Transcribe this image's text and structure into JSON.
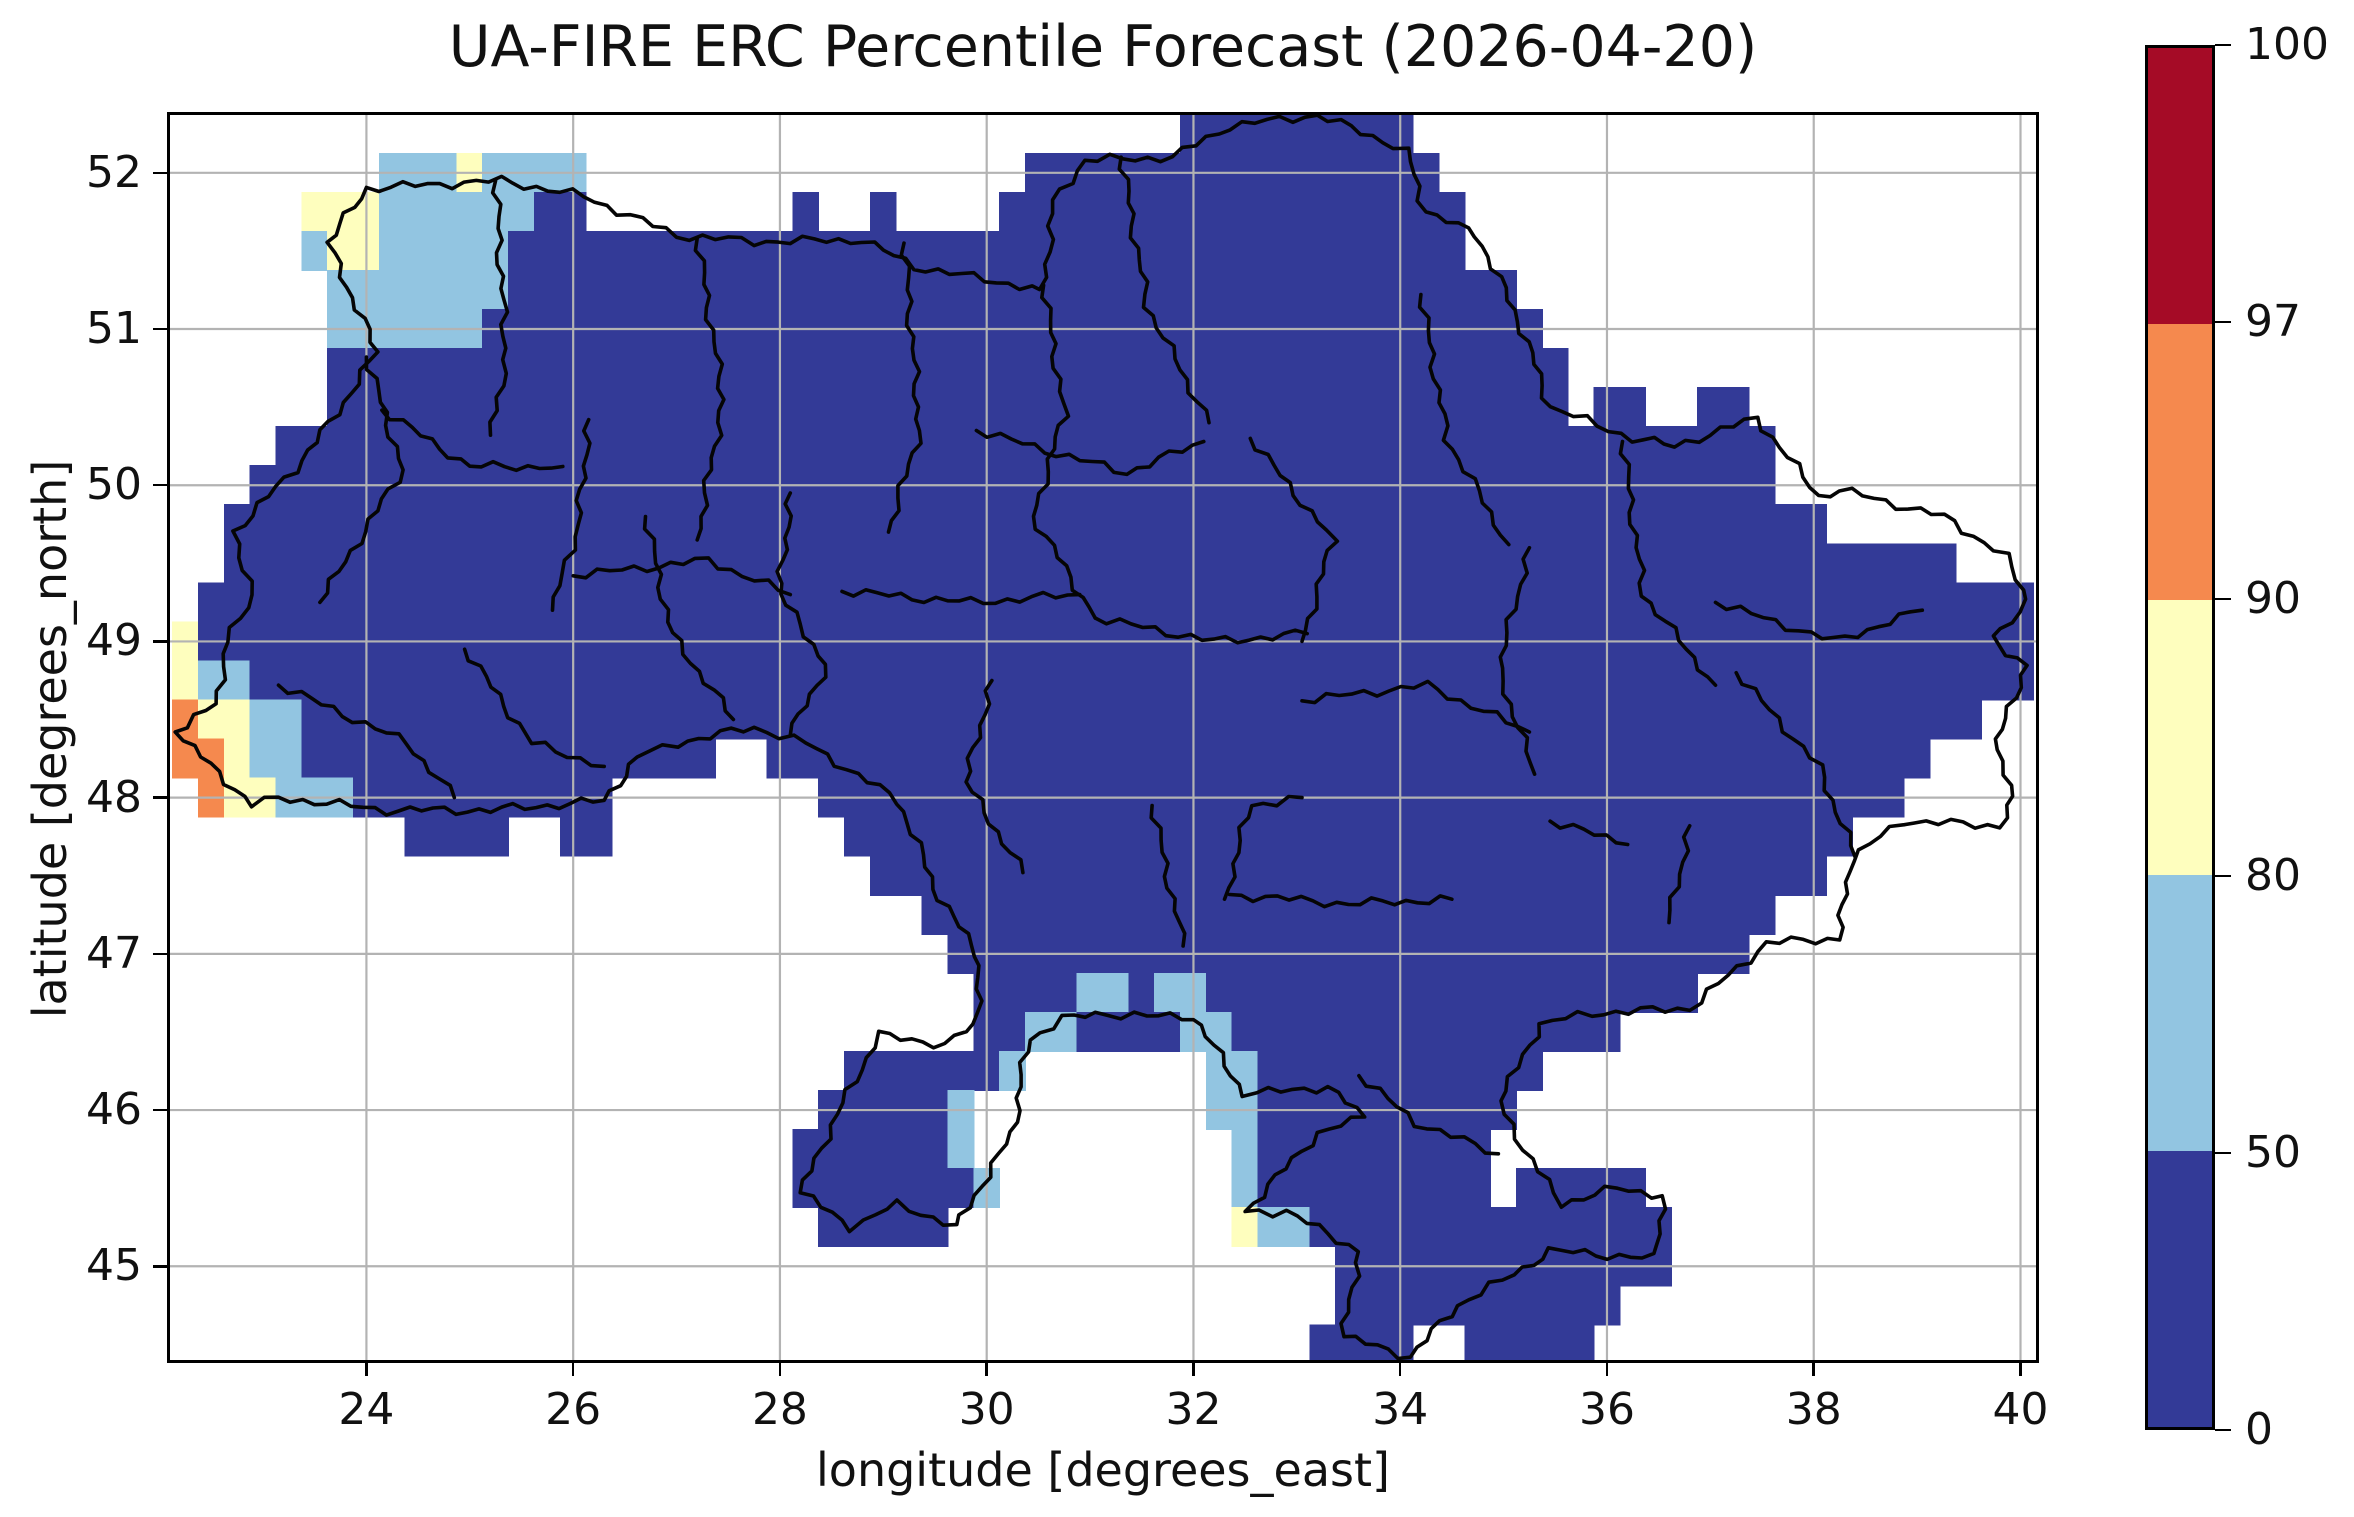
{
  "chart_data": {
    "type": "heatmap",
    "title": "UA-FIRE ERC Percentile Forecast (2026-04-20)",
    "xlabel": "longitude [degrees_east]",
    "ylabel": "latitude [degrees_north]",
    "xlim": [
      22.1,
      40.15
    ],
    "ylim": [
      44.4,
      52.37
    ],
    "xticks": [
      24,
      26,
      28,
      30,
      32,
      34,
      36,
      38,
      40
    ],
    "yticks": [
      45,
      46,
      47,
      48,
      49,
      50,
      51,
      52
    ],
    "grid": true,
    "grid_color": "#b3b3b3",
    "background": "#ffffff",
    "colorbar": {
      "levels": [
        0,
        50,
        80,
        90,
        97,
        100
      ],
      "colors": [
        "#333a97",
        "#92c5e1",
        "#fefebe",
        "#f5894e",
        "#a50b26"
      ],
      "spacing": "uniform"
    },
    "raster": {
      "comment": "0.25-degree cells; row 0 centered at lat 52.25 going south; col 0 centered at lon 22.25 going east; RLE per row; .=no data, b=0-50, c=50-80, y=80-90, o=90-97, r=97-100 percentile class",
      "lon0": 22.25,
      "lat0": 52.25,
      "dlon": 0.25,
      "dlat": 0.25,
      "cols": 72,
      "class_values": {
        "b": "0-50",
        "c": "50-80",
        "y": "80-90",
        "o": "90-97",
        "r": "97-100"
      },
      "class_colors": {
        "b": "#333a97",
        "c": "#92c5e1",
        "y": "#fefebe",
        "o": "#f5894e",
        "r": "#a50b26"
      },
      "rows": [
        "39.9b24.",
        "8.3c1y4c17.16b23.",
        "5.3y6c2b8.1b2.1b4.18b22.",
        "5.1c2y5c37b22.",
        "6.7c39b20.",
        "6.6c41b19.",
        "6.48b18.",
        "6.48b1.2b2.2b11.",
        "4.58b10.",
        "3.59b10.",
        "2.62b8.",
        "2.67b3.",
        "1.71b",
        "1y71b",
        "1y2c69b",
        "1o2y2c65b2.",
        "2o1y2c16b2.45b4.",
        "1.1o2y3c10b8.42b5.",
        "9.4b2.2b9.39b7.",
        "27.37b8.",
        "29.33b10.",
        "30.31b11.",
        "31.4b2c1b2c19b13.",
        "31.2b2c4b2c15b16.",
        "26.6b1c7.2c11b19.",
        "25.5b1c9.2c10b20.",
        "24.6b1c10.1c9b21.",
        "24.7b1c9.1c9b1.5b15.",
        "25.5b11.1y2c14b14.",
        "45.13b14.",
        "45.11b16.",
        "44.4b2.5b17."
      ]
    },
    "borders": {
      "national": [
        [
          22.15,
          48.42
        ],
        [
          22.55,
          48.6
        ],
        [
          22.65,
          49.0
        ],
        [
          22.9,
          49.3
        ],
        [
          22.72,
          49.7
        ],
        [
          23.3,
          50.1
        ],
        [
          23.65,
          50.4
        ],
        [
          24.1,
          50.85
        ],
        [
          23.63,
          51.55
        ],
        [
          24.0,
          51.9
        ],
        [
          25.3,
          51.95
        ],
        [
          26.1,
          51.85
        ],
        [
          27.0,
          51.6
        ],
        [
          27.75,
          51.56
        ],
        [
          28.8,
          51.57
        ],
        [
          29.3,
          51.4
        ],
        [
          30.55,
          51.25
        ],
        [
          30.65,
          51.82
        ],
        [
          30.95,
          52.08
        ],
        [
          31.8,
          52.1
        ],
        [
          32.35,
          52.3
        ],
        [
          33.2,
          52.37
        ],
        [
          34.05,
          52.15
        ],
        [
          34.25,
          51.75
        ],
        [
          34.75,
          51.6
        ],
        [
          35.15,
          51.05
        ],
        [
          35.45,
          50.5
        ],
        [
          36.25,
          50.3
        ],
        [
          36.65,
          50.25
        ],
        [
          37.45,
          50.43
        ],
        [
          38.05,
          49.93
        ],
        [
          38.25,
          49.97
        ],
        [
          39.25,
          49.8
        ],
        [
          39.85,
          49.55
        ],
        [
          40.08,
          49.25
        ],
        [
          39.72,
          49.02
        ],
        [
          40.05,
          48.85
        ],
        [
          39.75,
          48.3
        ],
        [
          39.95,
          48.0
        ],
        [
          39.8,
          47.82
        ],
        [
          38.85,
          47.85
        ],
        [
          38.35,
          47.6
        ],
        [
          38.25,
          47.1
        ],
        [
          37.55,
          47.07
        ],
        [
          36.8,
          46.65
        ],
        [
          35.85,
          46.62
        ],
        [
          35.35,
          46.55
        ],
        [
          35.2,
          46.35
        ],
        [
          34.95,
          46.05
        ],
        [
          35.2,
          45.75
        ],
        [
          35.55,
          45.4
        ],
        [
          36.1,
          45.5
        ],
        [
          36.55,
          45.45
        ],
        [
          36.45,
          45.05
        ],
        [
          35.45,
          45.1
        ],
        [
          35.1,
          44.95
        ],
        [
          34.55,
          44.75
        ],
        [
          34.1,
          44.42
        ],
        [
          33.45,
          44.55
        ],
        [
          33.6,
          45.1
        ],
        [
          32.9,
          45.35
        ],
        [
          32.5,
          45.35
        ],
        [
          33.2,
          45.85
        ],
        [
          33.65,
          45.95
        ],
        [
          33.3,
          46.15
        ],
        [
          32.5,
          46.1
        ],
        [
          32.0,
          46.6
        ],
        [
          31.55,
          46.6
        ],
        [
          31.05,
          46.62
        ],
        [
          30.75,
          46.58
        ],
        [
          30.4,
          46.45
        ],
        [
          30.25,
          45.85
        ],
        [
          29.7,
          45.25
        ],
        [
          29.15,
          45.4
        ],
        [
          28.7,
          45.25
        ],
        [
          28.2,
          45.47
        ],
        [
          28.5,
          45.9
        ],
        [
          28.95,
          46.48
        ],
        [
          29.6,
          46.42
        ],
        [
          29.9,
          46.55
        ],
        [
          29.92,
          47.0
        ],
        [
          29.55,
          47.35
        ],
        [
          29.15,
          47.98
        ],
        [
          28.25,
          48.35
        ],
        [
          27.75,
          48.45
        ],
        [
          27.0,
          48.35
        ],
        [
          26.62,
          48.26
        ],
        [
          26.3,
          47.98
        ],
        [
          25.2,
          47.92
        ],
        [
          24.2,
          47.92
        ],
        [
          23.15,
          48.0
        ],
        [
          22.9,
          47.95
        ],
        [
          22.15,
          48.42
        ]
      ],
      "internal": [
        [
          [
            24.0,
            50.82
          ],
          [
            24.35,
            50.1
          ],
          [
            23.55,
            49.25
          ]
        ],
        [
          [
            25.25,
            51.95
          ],
          [
            25.35,
            50.8
          ],
          [
            25.2,
            50.32
          ]
        ],
        [
          [
            24.15,
            50.48
          ],
          [
            25.0,
            50.12
          ],
          [
            25.9,
            50.12
          ]
        ],
        [
          [
            26.15,
            50.42
          ],
          [
            26.05,
            49.75
          ],
          [
            25.8,
            49.2
          ]
        ],
        [
          [
            27.2,
            51.58
          ],
          [
            27.45,
            50.55
          ],
          [
            27.2,
            49.65
          ]
        ],
        [
          [
            26.7,
            49.8
          ],
          [
            26.95,
            49.05
          ],
          [
            27.55,
            48.5
          ]
        ],
        [
          [
            29.2,
            51.55
          ],
          [
            29.35,
            50.35
          ],
          [
            29.05,
            49.7
          ]
        ],
        [
          [
            28.1,
            49.95
          ],
          [
            28.0,
            49.3
          ],
          [
            28.45,
            48.85
          ],
          [
            28.1,
            48.4
          ]
        ],
        [
          [
            30.55,
            51.28
          ],
          [
            30.75,
            50.45
          ],
          [
            30.45,
            49.8
          ],
          [
            31.05,
            49.15
          ]
        ],
        [
          [
            29.9,
            50.35
          ],
          [
            31.35,
            50.08
          ],
          [
            32.1,
            50.28
          ]
        ],
        [
          [
            31.3,
            52.1
          ],
          [
            31.55,
            51.15
          ],
          [
            32.15,
            50.4
          ]
        ],
        [
          [
            26.0,
            49.42
          ],
          [
            27.3,
            49.52
          ],
          [
            28.1,
            49.3
          ]
        ],
        [
          [
            28.6,
            49.32
          ],
          [
            29.85,
            49.25
          ],
          [
            30.9,
            49.3
          ]
        ],
        [
          [
            31.05,
            49.15
          ],
          [
            32.2,
            49.0
          ],
          [
            33.1,
            49.05
          ]
        ],
        [
          [
            32.55,
            50.3
          ],
          [
            33.35,
            49.65
          ],
          [
            33.05,
            49.0
          ]
        ],
        [
          [
            34.2,
            51.22
          ],
          [
            34.45,
            50.3
          ],
          [
            35.05,
            49.62
          ]
        ],
        [
          [
            33.05,
            48.62
          ],
          [
            34.25,
            48.72
          ],
          [
            35.25,
            48.42
          ]
        ],
        [
          [
            35.25,
            49.6
          ],
          [
            34.95,
            48.82
          ],
          [
            35.3,
            48.15
          ]
        ],
        [
          [
            36.15,
            50.28
          ],
          [
            36.35,
            49.3
          ],
          [
            37.05,
            48.72
          ]
        ],
        [
          [
            37.05,
            49.25
          ],
          [
            38.2,
            49.0
          ],
          [
            39.05,
            49.2
          ]
        ],
        [
          [
            37.25,
            48.8
          ],
          [
            38.05,
            48.2
          ],
          [
            38.4,
            47.62
          ]
        ],
        [
          [
            33.05,
            48.0
          ],
          [
            32.55,
            47.95
          ],
          [
            32.3,
            47.35
          ]
        ],
        [
          [
            31.6,
            47.95
          ],
          [
            31.9,
            47.05
          ]
        ],
        [
          [
            30.05,
            48.75
          ],
          [
            29.8,
            48.1
          ],
          [
            30.35,
            47.52
          ]
        ],
        [
          [
            24.95,
            48.95
          ],
          [
            25.6,
            48.35
          ],
          [
            26.3,
            48.2
          ]
        ],
        [
          [
            23.15,
            48.72
          ],
          [
            24.4,
            48.35
          ],
          [
            24.85,
            48.0
          ]
        ],
        [
          [
            33.6,
            46.22
          ],
          [
            34.15,
            45.92
          ],
          [
            34.95,
            45.72
          ]
        ],
        [
          [
            36.8,
            47.82
          ],
          [
            36.6,
            47.2
          ]
        ],
        [
          [
            34.5,
            47.35
          ],
          [
            33.5,
            47.32
          ],
          [
            32.35,
            47.38
          ]
        ],
        [
          [
            35.45,
            47.85
          ],
          [
            36.2,
            47.7
          ]
        ]
      ]
    }
  }
}
